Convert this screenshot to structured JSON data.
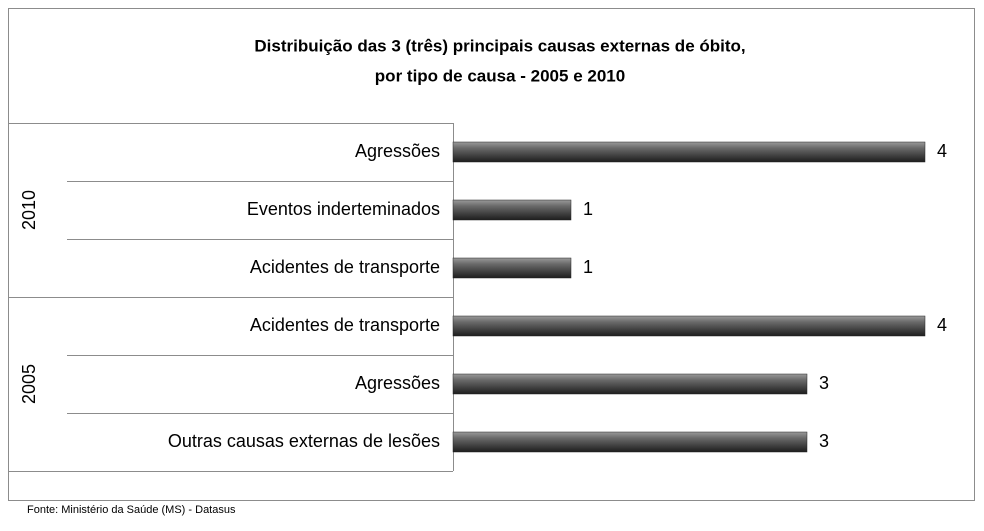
{
  "chart_data": {
    "type": "bar",
    "title": [
      "Distribuição das 3 (três) principais causas externas de óbito,",
      "por tipo de causa - 2005 e 2010"
    ],
    "groups": [
      {
        "name": "2010",
        "categories": [
          "Agressões",
          "Eventos inderteminados",
          "Acidentes de transporte"
        ],
        "values": [
          4,
          1,
          1
        ]
      },
      {
        "name": "2005",
        "categories": [
          "Acidentes de transporte",
          "Agressões",
          "Outras causas externas de lesões"
        ],
        "values": [
          4,
          3,
          3
        ]
      }
    ],
    "color": "#4a4a4a",
    "xlim": [
      0,
      4
    ],
    "source": "Fonte: Ministério da Saúde (MS) - Datasus"
  }
}
